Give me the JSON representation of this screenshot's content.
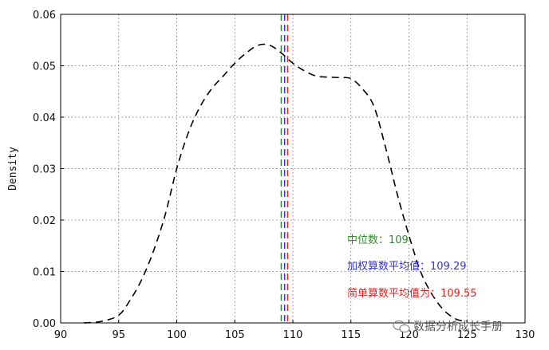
{
  "chart_data": {
    "type": "line",
    "title": "",
    "xlabel": "",
    "ylabel": "Density",
    "xlim": [
      90,
      130
    ],
    "ylim": [
      0,
      0.06
    ],
    "x_ticks": [
      90,
      95,
      100,
      105,
      110,
      115,
      120,
      125,
      130
    ],
    "x_tick_labels": [
      "90",
      "95",
      "100",
      "105",
      "110",
      "115",
      "120",
      "125",
      "130"
    ],
    "y_ticks": [
      0,
      0.01,
      0.02,
      0.03,
      0.04,
      0.05,
      0.06
    ],
    "y_tick_labels": [
      "0.00",
      "0.01",
      "0.02",
      "0.03",
      "0.04",
      "0.05",
      "0.06"
    ],
    "grid": true,
    "series": [
      {
        "style": "dashed",
        "color": "#000000",
        "x": [
          92,
          93.5,
          95,
          96,
          97,
          98,
          99,
          100,
          101,
          102,
          103,
          104,
          105,
          106,
          107,
          108,
          109,
          110,
          111,
          112,
          113,
          114,
          115,
          116,
          117,
          118,
          119,
          120,
          121,
          122,
          123,
          124,
          125
        ],
        "y": [
          0.0,
          0.0003,
          0.0015,
          0.0045,
          0.0085,
          0.014,
          0.021,
          0.03,
          0.037,
          0.042,
          0.0455,
          0.048,
          0.0505,
          0.0525,
          0.054,
          0.054,
          0.0525,
          0.0505,
          0.049,
          0.048,
          0.0478,
          0.0477,
          0.0475,
          0.0455,
          0.042,
          0.034,
          0.025,
          0.017,
          0.01,
          0.0055,
          0.0025,
          0.0008,
          0.0002
        ]
      }
    ],
    "vlines": [
      {
        "x": 109.0,
        "color": "#2e8b2e",
        "style": "dashed"
      },
      {
        "x": 109.29,
        "color": "#3333cc",
        "style": "dashed"
      },
      {
        "x": 109.55,
        "color": "#dd2222",
        "style": "dashed"
      }
    ],
    "annotations": [
      {
        "text": "中位数：109",
        "color": "#2e8b2e"
      },
      {
        "text": "加权算数平均值：109.29",
        "color": "#3333cc"
      },
      {
        "text": "简单算数平均值为：109.55",
        "color": "#dd2222"
      }
    ]
  },
  "watermark": "数据分析成长手册"
}
